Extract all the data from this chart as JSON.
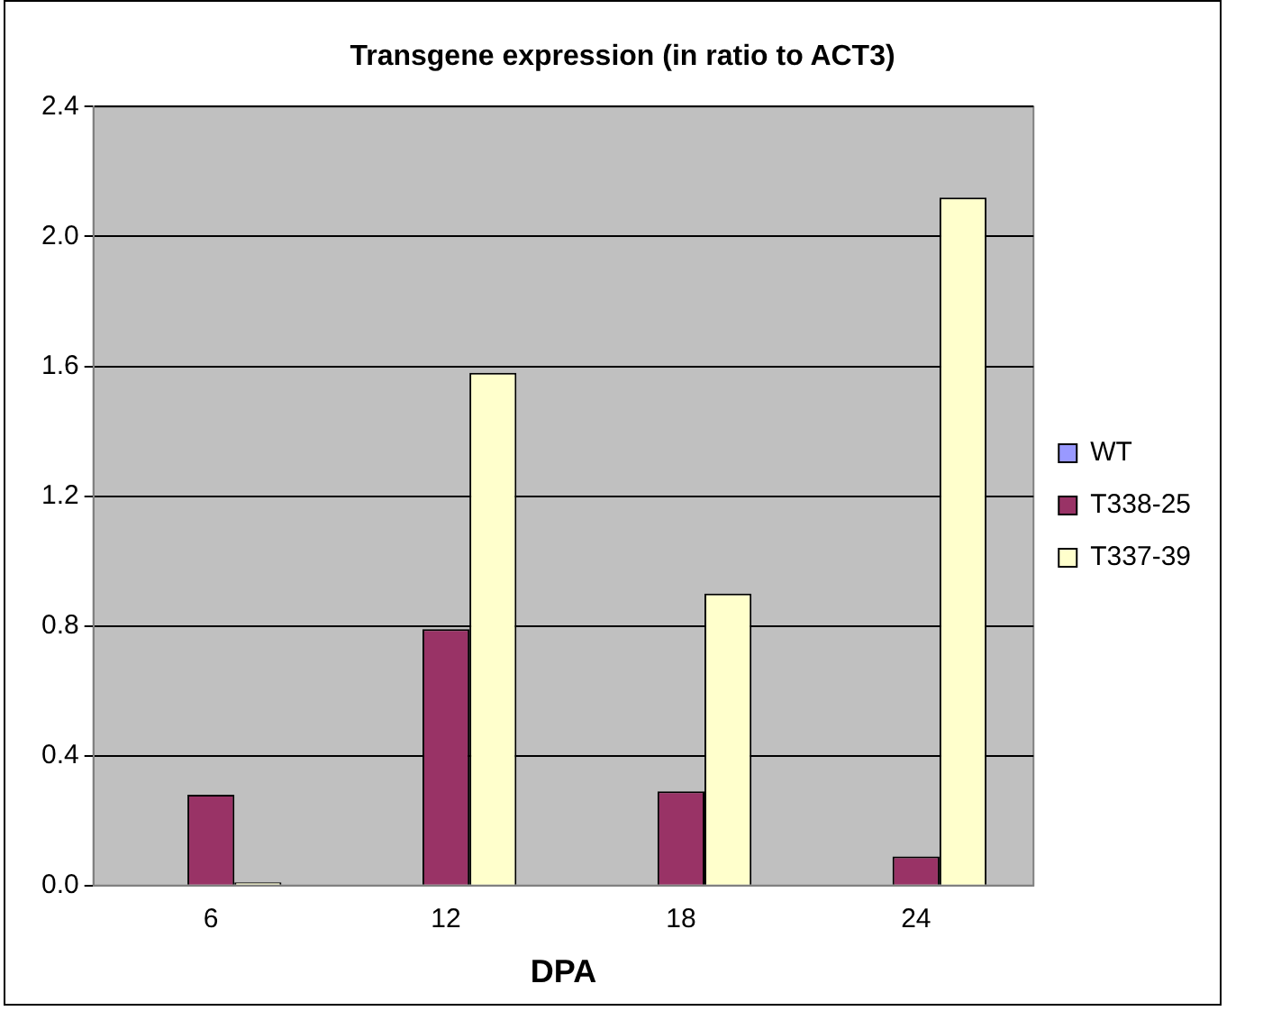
{
  "chart_data": {
    "type": "bar",
    "title": "Transgene expression (in ratio to ACT3)",
    "xlabel": "DPA",
    "categories": [
      "6",
      "12",
      "18",
      "24"
    ],
    "series": [
      {
        "name": "WT",
        "color": "#9999ff",
        "values": [
          0,
          0,
          0,
          0
        ]
      },
      {
        "name": "T338-25",
        "color": "#993366",
        "values": [
          0.28,
          0.79,
          0.29,
          0.09
        ]
      },
      {
        "name": "T337-39",
        "color": "#ffffcc",
        "values": [
          0.01,
          1.58,
          0.9,
          2.12
        ]
      }
    ],
    "ylim": [
      0,
      2.4
    ],
    "yticks": [
      {
        "value": 0,
        "label": "0.0"
      },
      0.4,
      0.8,
      1.2,
      1.6,
      {
        "value": 2,
        "label": "2.0"
      },
      2.4
    ],
    "grid": "y",
    "legend": "right"
  }
}
